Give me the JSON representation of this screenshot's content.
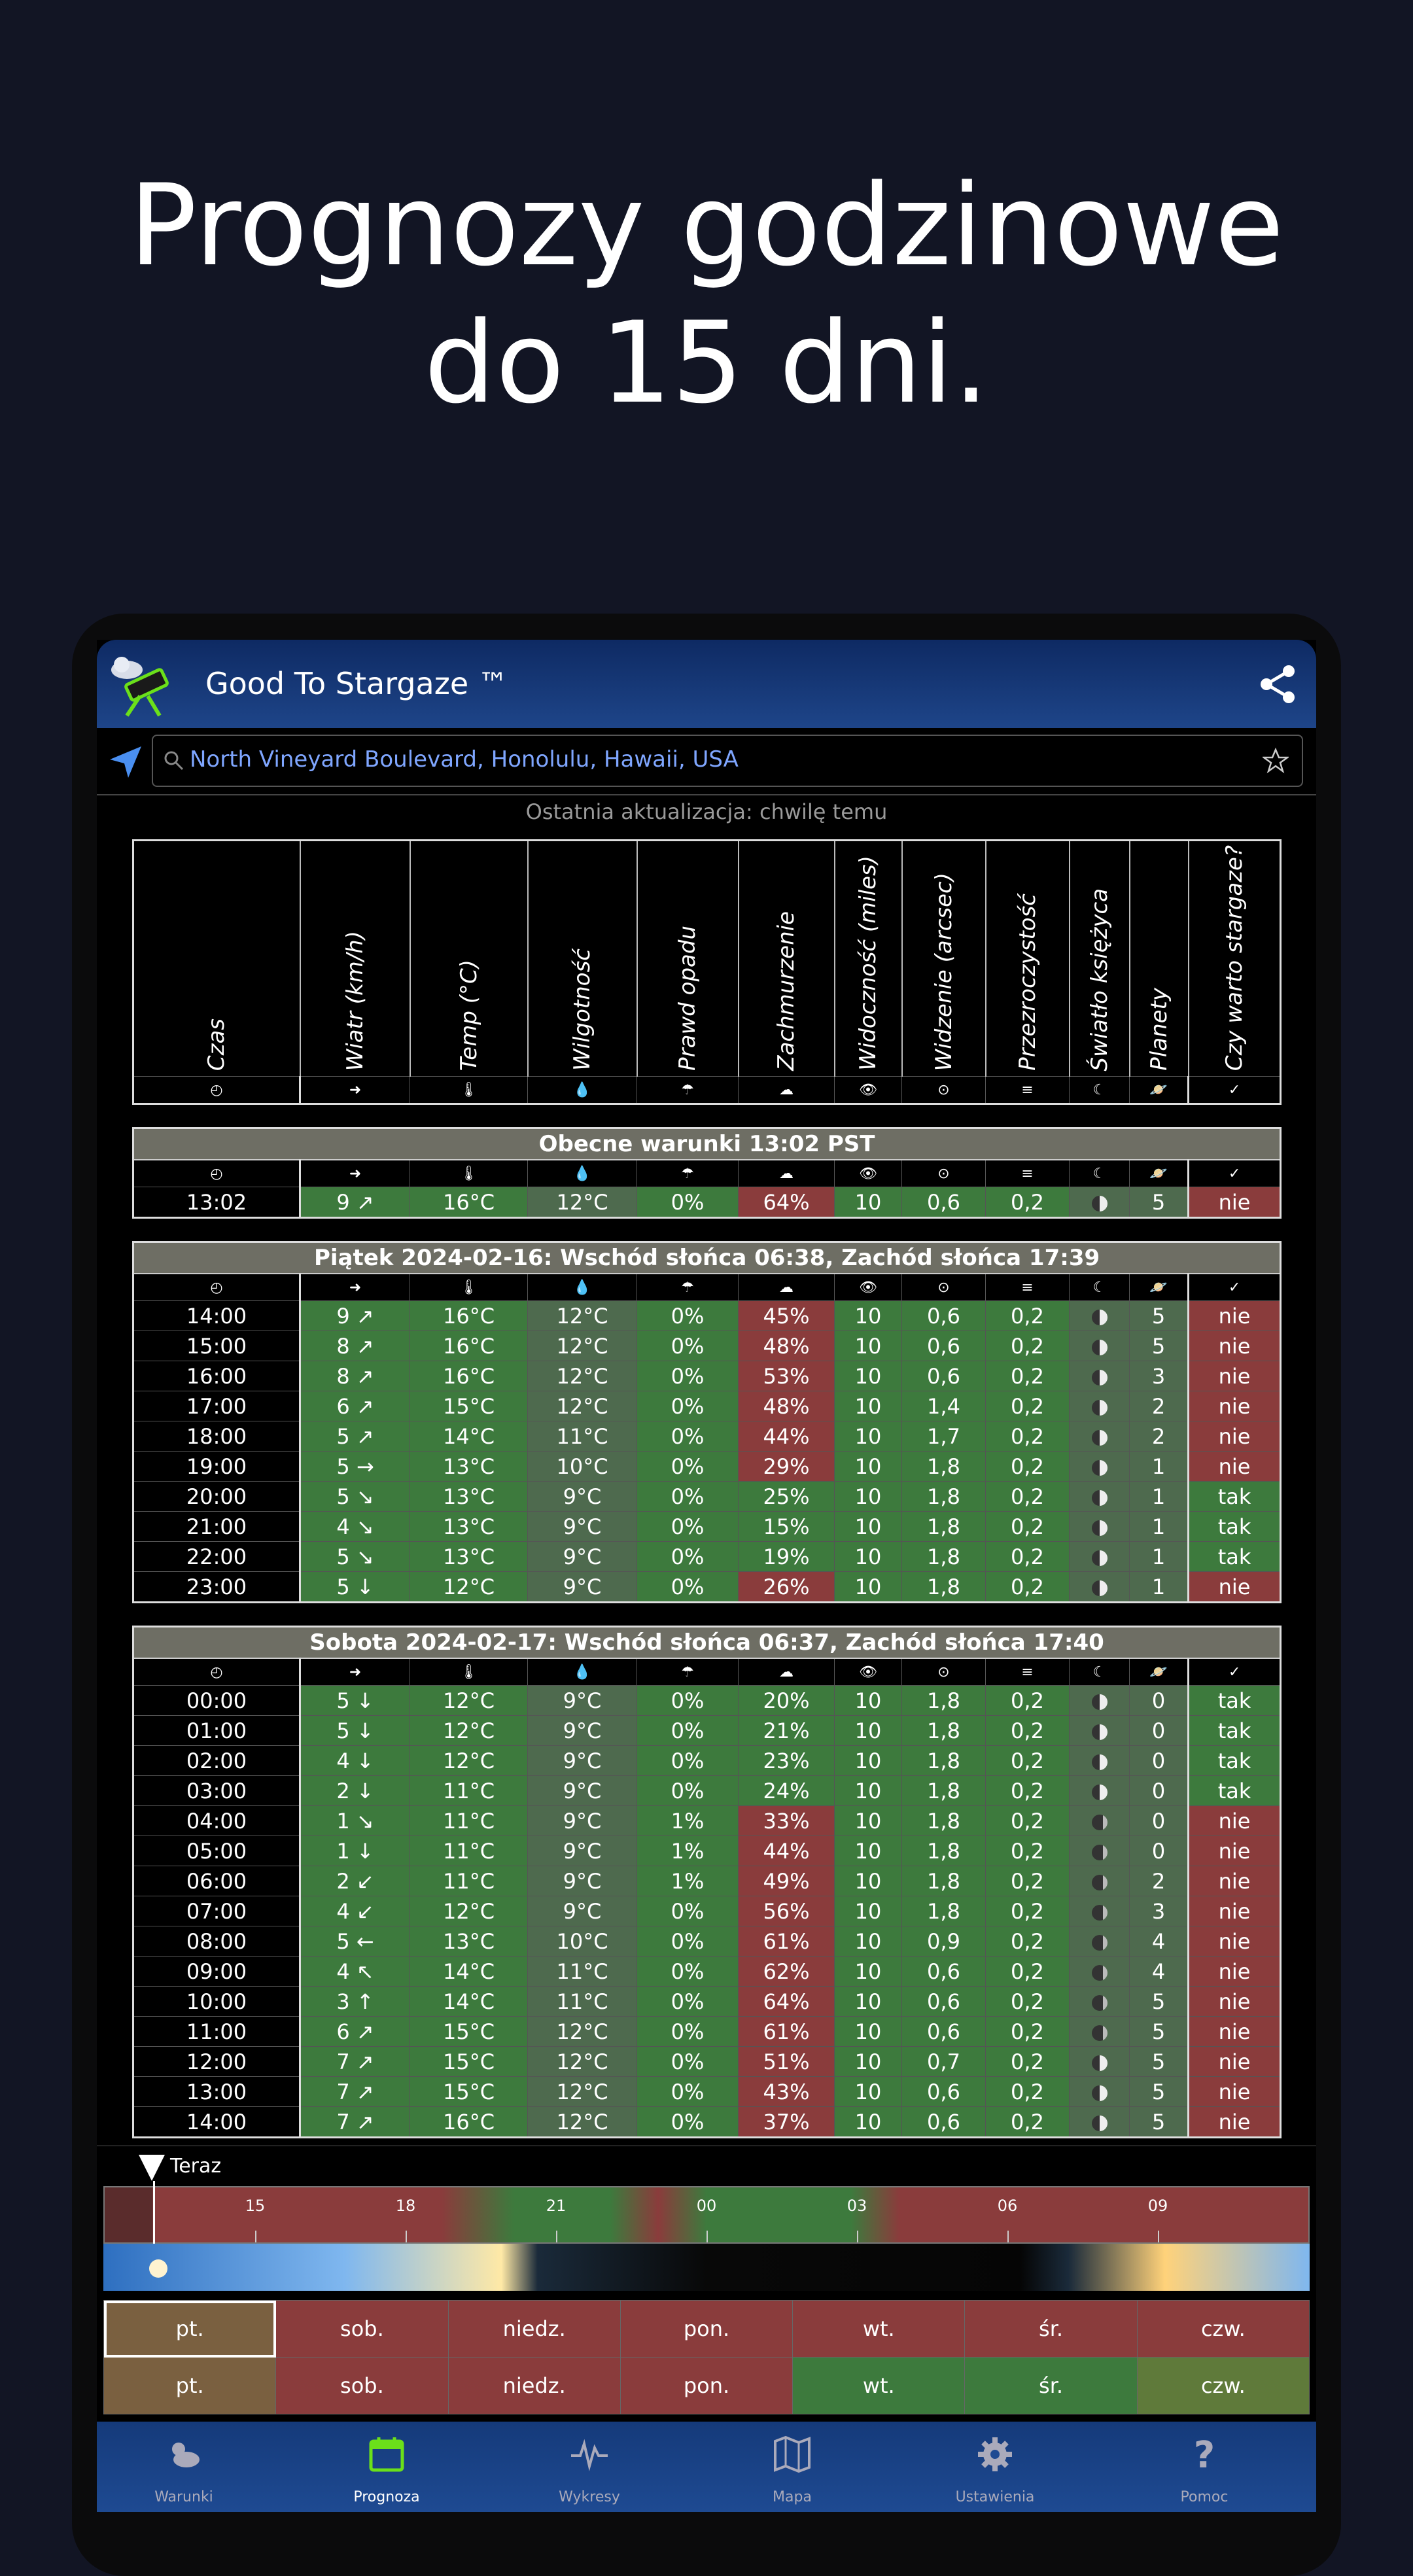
{
  "hero": {
    "line1": "Prognozy godzinowe",
    "line2": "do 15 dni."
  },
  "app": {
    "title": "Good To Stargaze ™"
  },
  "search": {
    "value": "North Vineyard Boulevard, Honolulu, Hawaii, USA"
  },
  "updated": "Ostatnia aktualizacja: chwilę temu",
  "headers": [
    "Czas",
    "Wiatr (km/h)",
    "Temp (°C)",
    "Wilgotność",
    "Prawd opadu",
    "Zachmurzenie",
    "Widoczność (miles)",
    "Widzenie (arcsec)",
    "Przezroczystość",
    "Światło księżyca",
    "Planety",
    "Czy warto stargaze?"
  ],
  "icons": [
    "◴",
    "➜",
    "🌡",
    "💧",
    "☂",
    "☁",
    "👁",
    "⊙",
    "≡",
    "☾",
    "🪐",
    "✓"
  ],
  "current": {
    "title": "Obecne warunki 13:02 PST",
    "row": [
      "13:02",
      "9 ↗",
      "16°C",
      "12°C",
      "0%",
      "64%",
      "10",
      "0,6",
      "0,2",
      "",
      "5",
      "nie"
    ]
  },
  "day1": {
    "title": "Piątek 2024-02-16: Wschód słońca 06:38, Zachód słońca 17:39",
    "rows": [
      [
        "14:00",
        "9 ↗",
        "16°C",
        "12°C",
        "0%",
        "45%",
        "10",
        "0,6",
        "0,2",
        "",
        "5",
        "nie"
      ],
      [
        "15:00",
        "8 ↗",
        "16°C",
        "12°C",
        "0%",
        "48%",
        "10",
        "0,6",
        "0,2",
        "",
        "5",
        "nie"
      ],
      [
        "16:00",
        "8 ↗",
        "16°C",
        "12°C",
        "0%",
        "53%",
        "10",
        "0,6",
        "0,2",
        "",
        "3",
        "nie"
      ],
      [
        "17:00",
        "6 ↗",
        "15°C",
        "12°C",
        "0%",
        "48%",
        "10",
        "1,4",
        "0,2",
        "",
        "2",
        "nie"
      ],
      [
        "18:00",
        "5 ↗",
        "14°C",
        "11°C",
        "0%",
        "44%",
        "10",
        "1,7",
        "0,2",
        "",
        "2",
        "nie"
      ],
      [
        "19:00",
        "5 →",
        "13°C",
        "10°C",
        "0%",
        "29%",
        "10",
        "1,8",
        "0,2",
        "",
        "1",
        "nie"
      ],
      [
        "20:00",
        "5 ↘",
        "13°C",
        "9°C",
        "0%",
        "25%",
        "10",
        "1,8",
        "0,2",
        "",
        "1",
        "tak"
      ],
      [
        "21:00",
        "4 ↘",
        "13°C",
        "9°C",
        "0%",
        "15%",
        "10",
        "1,8",
        "0,2",
        "",
        "1",
        "tak"
      ],
      [
        "22:00",
        "5 ↘",
        "13°C",
        "9°C",
        "0%",
        "19%",
        "10",
        "1,8",
        "0,2",
        "",
        "1",
        "tak"
      ],
      [
        "23:00",
        "5 ↓",
        "12°C",
        "9°C",
        "0%",
        "26%",
        "10",
        "1,8",
        "0,2",
        "",
        "1",
        "nie"
      ]
    ]
  },
  "day2": {
    "title": "Sobota 2024-02-17: Wschód słońca 06:37, Zachód słońca 17:40",
    "rows": [
      [
        "00:00",
        "5 ↓",
        "12°C",
        "9°C",
        "0%",
        "20%",
        "10",
        "1,8",
        "0,2",
        "",
        "0",
        "tak"
      ],
      [
        "01:00",
        "5 ↓",
        "12°C",
        "9°C",
        "0%",
        "21%",
        "10",
        "1,8",
        "0,2",
        "",
        "0",
        "tak"
      ],
      [
        "02:00",
        "4 ↓",
        "12°C",
        "9°C",
        "0%",
        "23%",
        "10",
        "1,8",
        "0,2",
        "",
        "0",
        "tak"
      ],
      [
        "03:00",
        "2 ↓",
        "11°C",
        "9°C",
        "0%",
        "24%",
        "10",
        "1,8",
        "0,2",
        "",
        "0",
        "tak"
      ],
      [
        "04:00",
        "1 ↘",
        "11°C",
        "9°C",
        "1%",
        "33%",
        "10",
        "1,8",
        "0,2",
        "",
        "0",
        "nie"
      ],
      [
        "05:00",
        "1 ↓",
        "11°C",
        "9°C",
        "1%",
        "44%",
        "10",
        "1,8",
        "0,2",
        "",
        "0",
        "nie"
      ],
      [
        "06:00",
        "2 ↙",
        "11°C",
        "9°C",
        "1%",
        "49%",
        "10",
        "1,8",
        "0,2",
        "",
        "2",
        "nie"
      ],
      [
        "07:00",
        "4 ↙",
        "12°C",
        "9°C",
        "0%",
        "56%",
        "10",
        "1,8",
        "0,2",
        "",
        "3",
        "nie"
      ],
      [
        "08:00",
        "5 ←",
        "13°C",
        "10°C",
        "0%",
        "61%",
        "10",
        "0,9",
        "0,2",
        "",
        "4",
        "nie"
      ],
      [
        "09:00",
        "4 ↖",
        "14°C",
        "11°C",
        "0%",
        "62%",
        "10",
        "0,6",
        "0,2",
        "",
        "4",
        "nie"
      ],
      [
        "10:00",
        "3 ↑",
        "14°C",
        "11°C",
        "0%",
        "64%",
        "10",
        "0,6",
        "0,2",
        "",
        "5",
        "nie"
      ],
      [
        "11:00",
        "6 ↗",
        "15°C",
        "12°C",
        "0%",
        "61%",
        "10",
        "0,6",
        "0,2",
        "",
        "5",
        "nie"
      ],
      [
        "12:00",
        "7 ↗",
        "15°C",
        "12°C",
        "0%",
        "51%",
        "10",
        "0,7",
        "0,2",
        "",
        "5",
        "nie"
      ],
      [
        "13:00",
        "7 ↗",
        "15°C",
        "12°C",
        "0%",
        "43%",
        "10",
        "0,6",
        "0,2",
        "",
        "5",
        "nie"
      ],
      [
        "14:00",
        "7 ↗",
        "16°C",
        "12°C",
        "0%",
        "37%",
        "10",
        "0,6",
        "0,2",
        "",
        "5",
        "nie"
      ]
    ]
  },
  "timeline": {
    "now_label": "Teraz",
    "ticks": [
      "15",
      "18",
      "21",
      "00",
      "03",
      "06",
      "09"
    ]
  },
  "days_row1": [
    "pt.",
    "sob.",
    "niedz.",
    "pon.",
    "wt.",
    "śr.",
    "czw."
  ],
  "days_row2": [
    "pt.",
    "sob.",
    "niedz.",
    "pon.",
    "wt.",
    "śr.",
    "czw."
  ],
  "nav": [
    "Warunki",
    "Prognoza",
    "Wykresy",
    "Mapa",
    "Ustawienia",
    "Pomoc"
  ],
  "colors": {
    "good": "#3d7a3d",
    "bad": "#8a3c3c",
    "header": "#1e4589",
    "background": "#121524"
  }
}
